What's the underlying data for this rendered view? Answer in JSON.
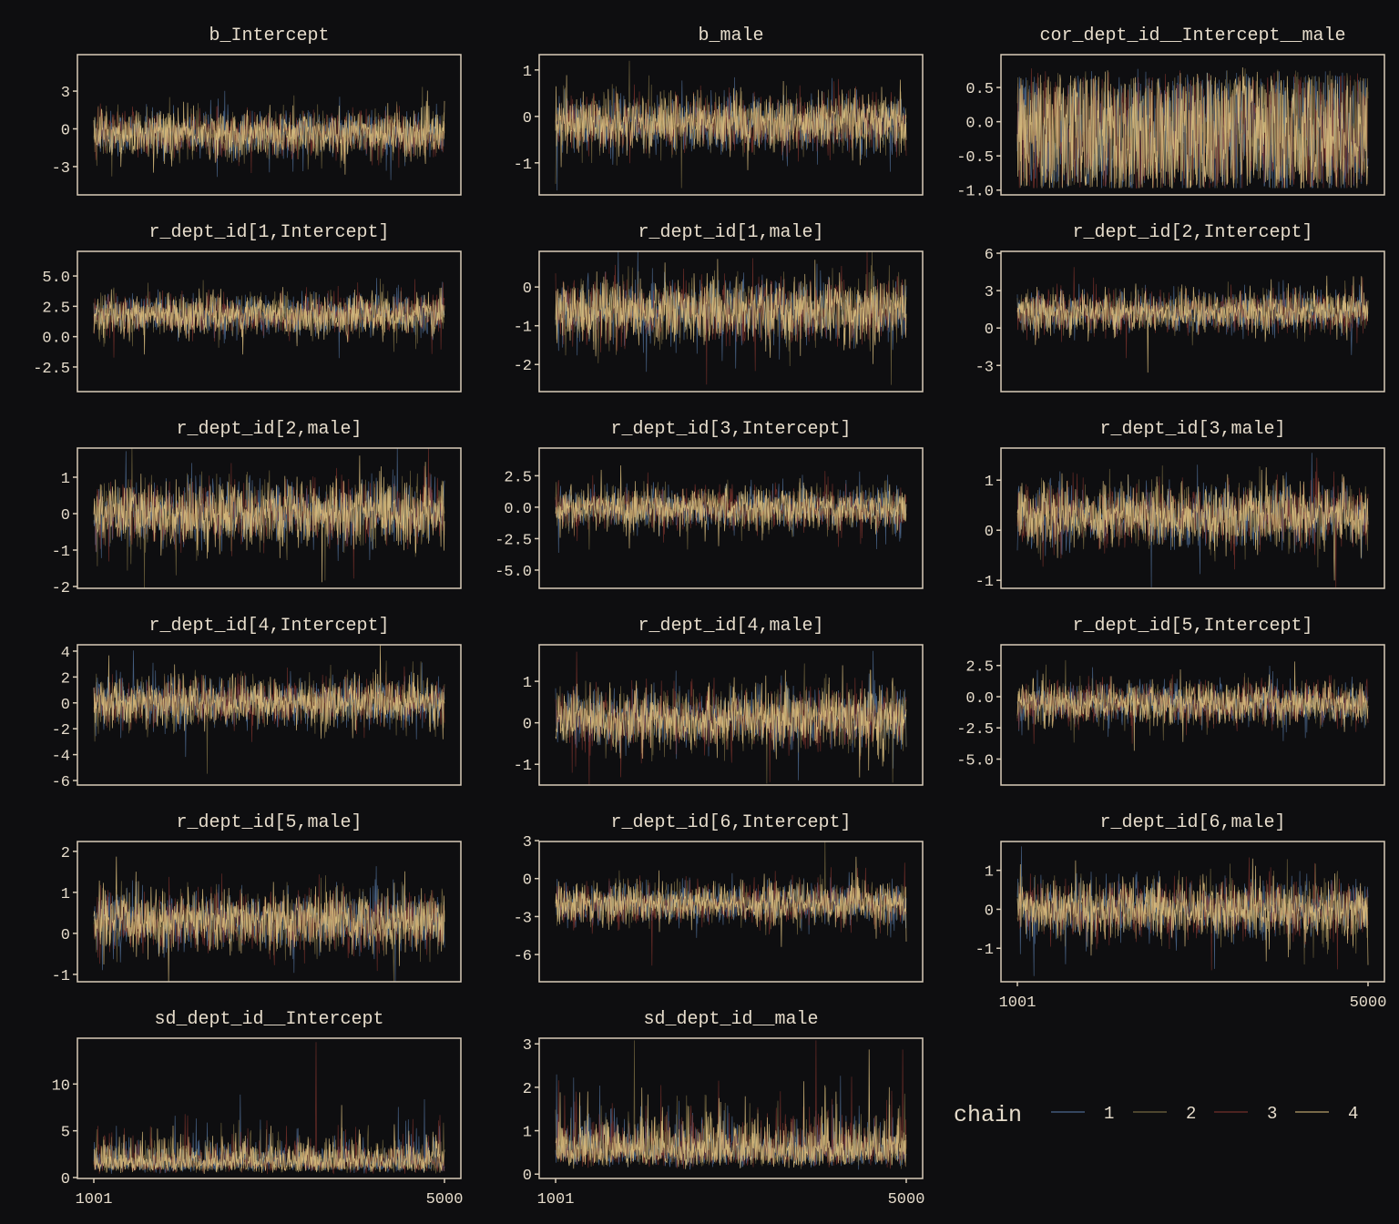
{
  "chart_data": {
    "type": "line",
    "xlim": [
      1001,
      5000
    ],
    "x_ticks": [
      "1001",
      "5000"
    ],
    "grid": false,
    "legend": {
      "title": "chain",
      "placement": "bottom-right",
      "entries": [
        "1",
        "2",
        "3",
        "4"
      ]
    },
    "colors": {
      "1": "#5b7fae",
      "2": "#8c7c4c",
      "3": "#8a3830",
      "4": "#e2c482",
      "background": "#0e0e10",
      "text": "#e6dccb",
      "frame": "#d8ccb8"
    },
    "panels": [
      {
        "title": "b_Intercept",
        "ylim": [
          -5.25,
          5.9
        ],
        "y_ticks": [
          3,
          0,
          -3
        ],
        "y_labels": [
          "3",
          "0",
          "-3"
        ],
        "center": -0.4,
        "spread": 0.9,
        "shape": "normal"
      },
      {
        "title": "b_male",
        "ylim": [
          -1.69,
          1.33
        ],
        "y_ticks": [
          1,
          0,
          -1
        ],
        "y_labels": [
          "1",
          "0",
          "-1"
        ],
        "center": -0.15,
        "spread": 0.3,
        "shape": "normal"
      },
      {
        "title": "cor_dept_id__Intercept__male",
        "ylim": [
          -1.07,
          0.98
        ],
        "y_ticks": [
          0.5,
          0,
          -0.5,
          -1
        ],
        "y_labels": [
          "0.5",
          "0.0",
          "-0.5",
          "-1.0"
        ],
        "center": -0.15,
        "spread": 0.45,
        "shape": "bounded"
      },
      {
        "title": "r_dept_id[1,Intercept]",
        "ylim": [
          -4.53,
          7.03
        ],
        "y_ticks": [
          5,
          2.5,
          0,
          -2.5
        ],
        "y_labels": [
          "5.0",
          "2.5",
          "0.0",
          "-2.5"
        ],
        "center": 1.8,
        "spread": 0.8,
        "shape": "normal"
      },
      {
        "title": "r_dept_id[1,male]",
        "ylim": [
          -2.7,
          0.92
        ],
        "y_ticks": [
          0,
          -1,
          -2
        ],
        "y_labels": [
          "0",
          "-1",
          "-2"
        ],
        "center": -0.6,
        "spread": 0.4,
        "shape": "normal"
      },
      {
        "title": "r_dept_id[2,Intercept]",
        "ylim": [
          -5.1,
          6.15
        ],
        "y_ticks": [
          6,
          3,
          0,
          -3
        ],
        "y_labels": [
          "6",
          "3",
          "0",
          "-3"
        ],
        "center": 1.3,
        "spread": 0.8,
        "shape": "normal"
      },
      {
        "title": "r_dept_id[2,male]",
        "ylim": [
          -2.05,
          1.8
        ],
        "y_ticks": [
          1,
          0,
          -1,
          -2
        ],
        "y_labels": [
          "1",
          "0",
          "-1",
          "-2"
        ],
        "center": 0.0,
        "spread": 0.42,
        "shape": "normal"
      },
      {
        "title": "r_dept_id[3,Intercept]",
        "ylim": [
          -6.45,
          4.7
        ],
        "y_ticks": [
          2.5,
          0,
          -2.5,
          -5
        ],
        "y_labels": [
          "2.5",
          "0.0",
          "-2.5",
          "-5.0"
        ],
        "center": -0.1,
        "spread": 0.8,
        "shape": "normal"
      },
      {
        "title": "r_dept_id[3,male]",
        "ylim": [
          -1.16,
          1.64
        ],
        "y_ticks": [
          1,
          0,
          -1
        ],
        "y_labels": [
          "1",
          "0",
          "-1"
        ],
        "center": 0.3,
        "spread": 0.3,
        "shape": "normal"
      },
      {
        "title": "r_dept_id[4,Intercept]",
        "ylim": [
          -6.35,
          4.49
        ],
        "y_ticks": [
          4,
          2,
          0,
          -2,
          -4,
          -6
        ],
        "y_labels": [
          "4",
          "2",
          "0",
          "-2",
          "-4",
          "-6"
        ],
        "center": 0.0,
        "spread": 0.9,
        "shape": "normal"
      },
      {
        "title": "r_dept_id[4,male]",
        "ylim": [
          -1.5,
          1.88
        ],
        "y_ticks": [
          1,
          0,
          -1
        ],
        "y_labels": [
          "1",
          "0",
          "-1"
        ],
        "center": 0.1,
        "spread": 0.35,
        "shape": "normal"
      },
      {
        "title": "r_dept_id[5,Intercept]",
        "ylim": [
          -7.08,
          4.16
        ],
        "y_ticks": [
          2.5,
          0,
          -2.5,
          -5
        ],
        "y_labels": [
          "2.5",
          "0.0",
          "-2.5",
          "-5.0"
        ],
        "center": -0.5,
        "spread": 0.8,
        "shape": "normal"
      },
      {
        "title": "r_dept_id[5,male]",
        "ylim": [
          -1.18,
          2.24
        ],
        "y_ticks": [
          2,
          1,
          0,
          -1
        ],
        "y_labels": [
          "2",
          "1",
          "0",
          "-1"
        ],
        "center": 0.3,
        "spread": 0.35,
        "shape": "normal"
      },
      {
        "title": "r_dept_id[6,Intercept]",
        "ylim": [
          -8.15,
          2.93
        ],
        "y_ticks": [
          3,
          0,
          -3,
          -6
        ],
        "y_labels": [
          "3",
          "0",
          "-3",
          "-6"
        ],
        "center": -2.0,
        "spread": 0.8,
        "shape": "normal"
      },
      {
        "title": "r_dept_id[6,male]",
        "ylim": [
          -1.86,
          1.74
        ],
        "y_ticks": [
          1,
          0,
          -1
        ],
        "y_labels": [
          "1",
          "0",
          "-1"
        ],
        "center": 0.0,
        "spread": 0.35,
        "shape": "normal"
      },
      {
        "title": "sd_dept_id__Intercept",
        "ylim": [
          -0.1,
          14.9
        ],
        "y_ticks": [
          10,
          5,
          0
        ],
        "y_labels": [
          "10",
          "5",
          "0"
        ],
        "center": 1.7,
        "spread": 0.8,
        "shape": "skewed"
      },
      {
        "title": "sd_dept_id__male",
        "ylim": [
          -0.1,
          3.13
        ],
        "y_ticks": [
          3,
          2,
          1,
          0
        ],
        "y_labels": [
          "3",
          "2",
          "1",
          "0"
        ],
        "center": 0.55,
        "spread": 0.3,
        "shape": "skewed"
      }
    ]
  }
}
